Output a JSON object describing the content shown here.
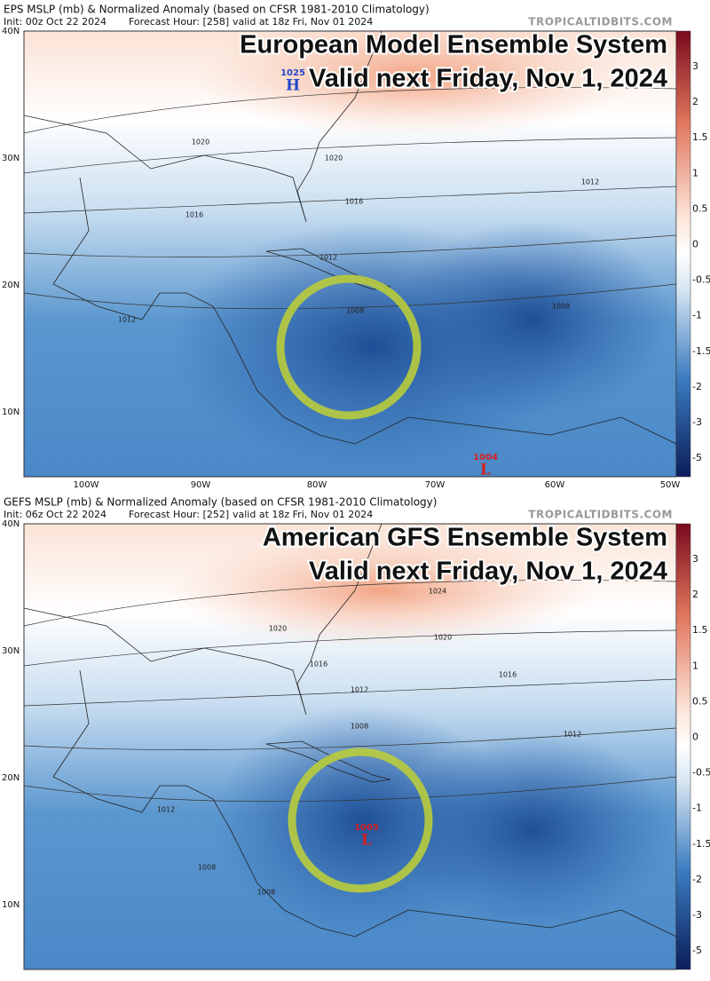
{
  "panels": [
    {
      "title": "EPS MSLP (mb) & Normalized Anomaly (based on CFSR 1981-2010 Climatology)",
      "init": "Init: 00z Oct 22 2024",
      "forecast_hour": "Forecast Hour: [258]",
      "valid": "valid at 18z Fri, Nov 01 2024",
      "site": "TROPICALTIDBITS.COM",
      "overlay": [
        "European Model Ensemble System",
        "Valid next Friday, Nov 1, 2024"
      ],
      "lat_labels": [
        "40N",
        "30N",
        "20N",
        "10N"
      ],
      "lon_labels": [
        "100W",
        "90W",
        "80W",
        "70W",
        "60W",
        "50W"
      ],
      "colorbar_labels": [
        "3",
        "2",
        "1.5",
        "1",
        "0.5",
        "0",
        "-0.5",
        "-1",
        "-1.5",
        "-2",
        "-3",
        "-5"
      ],
      "contour_labels": [
        "1020",
        "1020",
        "1016",
        "1016",
        "1012",
        "1012",
        "1008",
        "1008",
        "1012"
      ],
      "centers": [
        {
          "pressure": "1025",
          "letter": "H"
        },
        {
          "pressure": "1004",
          "letter": "L"
        }
      ]
    },
    {
      "title": "GEFS MSLP (mb) & Normalized Anomaly (based on CFSR 1981-2010 Climatology)",
      "init": "Init: 06z Oct 22 2024",
      "forecast_hour": "Forecast Hour: [252]",
      "valid": "valid at 18z Fri, Nov 01 2024",
      "site": "TROPICALTIDBITS.COM",
      "overlay": [
        "American GFS Ensemble System",
        "Valid next Friday, Nov 1, 2024"
      ],
      "lat_labels": [
        "40N",
        "30N",
        "20N",
        "10N"
      ],
      "lon_labels": [],
      "colorbar_labels": [
        "3",
        "2",
        "1.5",
        "1",
        "0.5",
        "0",
        "-0.5",
        "-1",
        "-1.5",
        "-2",
        "-3",
        "-5"
      ],
      "contour_labels": [
        "1024",
        "1020",
        "1020",
        "1016",
        "1016",
        "1012",
        "1012",
        "1008",
        "1012",
        "1008",
        "1008"
      ],
      "centers": [
        {
          "pressure": "1005",
          "letter": "L"
        }
      ]
    }
  ]
}
